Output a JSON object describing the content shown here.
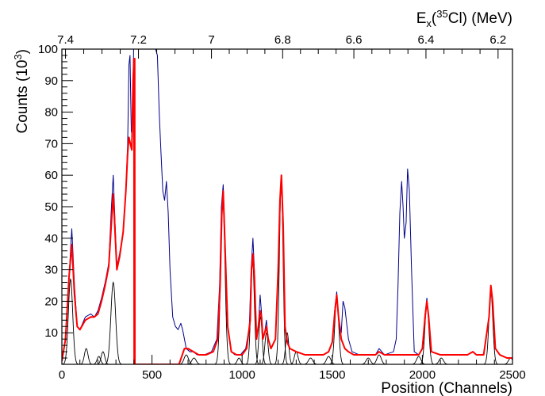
{
  "chart_data": {
    "type": "line",
    "xlabel": "Position (Channels)",
    "ylabel": "Counts (10^3)",
    "ylabel_parts": {
      "main": "Counts (10",
      "sup": "3",
      "end": ")"
    },
    "top_axis_label_parts": {
      "main": "E",
      "sub": "x",
      "open": "(",
      "sup": "35",
      "end": "Cl) (MeV)"
    },
    "xlim": [
      0,
      2500
    ],
    "ylim": [
      0,
      100
    ],
    "x_ticks": [
      {
        "v": 0,
        "label": "0"
      },
      {
        "v": 500,
        "label": "500"
      },
      {
        "v": 1000,
        "label": "1000"
      },
      {
        "v": 1500,
        "label": "1500"
      },
      {
        "v": 2000,
        "label": "2000"
      },
      {
        "v": 2500,
        "label": "2500"
      }
    ],
    "y_ticks": [
      {
        "v": 10,
        "label": "10"
      },
      {
        "v": 20,
        "label": "20"
      },
      {
        "v": 30,
        "label": "30"
      },
      {
        "v": 40,
        "label": "40"
      },
      {
        "v": 50,
        "label": "50"
      },
      {
        "v": 60,
        "label": "60"
      },
      {
        "v": 70,
        "label": "70"
      },
      {
        "v": 80,
        "label": "80"
      },
      {
        "v": 90,
        "label": "90"
      },
      {
        "v": 100,
        "label": "100"
      }
    ],
    "top_ticks": [
      {
        "channel": 20,
        "label": "7.4"
      },
      {
        "channel": 425,
        "label": "7.2"
      },
      {
        "channel": 830,
        "label": "7"
      },
      {
        "channel": 1225,
        "label": "6.8"
      },
      {
        "channel": 1620,
        "label": "6.6"
      },
      {
        "channel": 2020,
        "label": "6.4"
      },
      {
        "channel": 2420,
        "label": "6.2"
      }
    ],
    "series": [
      {
        "color": "#00008b",
        "values_y": [
          [
            0,
            1
          ],
          [
            20,
            8
          ],
          [
            40,
            28
          ],
          [
            55,
            43
          ],
          [
            70,
            25
          ],
          [
            85,
            12
          ],
          [
            100,
            11
          ],
          [
            130,
            15
          ],
          [
            160,
            16
          ],
          [
            180,
            15
          ],
          [
            200,
            17
          ],
          [
            220,
            21
          ],
          [
            240,
            26
          ],
          [
            260,
            32
          ],
          [
            275,
            50
          ],
          [
            285,
            60
          ],
          [
            295,
            45
          ],
          [
            305,
            31
          ],
          [
            320,
            35
          ],
          [
            340,
            42
          ],
          [
            355,
            55
          ],
          [
            365,
            70
          ],
          [
            372,
            95
          ],
          [
            378,
            98
          ],
          [
            385,
            74
          ],
          [
            392,
            72
          ],
          [
            398,
            100
          ],
          [
            405,
            100
          ],
          [
            415,
            100
          ],
          [
            430,
            100
          ],
          [
            440,
            100
          ],
          [
            450,
            100
          ],
          [
            460,
            100
          ],
          [
            470,
            100
          ],
          [
            480,
            100
          ],
          [
            490,
            100
          ],
          [
            500,
            100
          ],
          [
            510,
            100
          ],
          [
            520,
            100
          ],
          [
            530,
            98
          ],
          [
            540,
            80
          ],
          [
            550,
            67
          ],
          [
            560,
            55
          ],
          [
            570,
            52
          ],
          [
            580,
            58
          ],
          [
            590,
            48
          ],
          [
            600,
            30
          ],
          [
            615,
            15
          ],
          [
            630,
            12
          ],
          [
            645,
            11
          ],
          [
            660,
            13
          ],
          [
            670,
            11
          ],
          [
            690,
            5
          ],
          [
            710,
            4
          ],
          [
            730,
            4
          ],
          [
            750,
            3
          ],
          [
            790,
            3
          ],
          [
            830,
            4
          ],
          [
            860,
            8
          ],
          [
            875,
            25
          ],
          [
            885,
            50
          ],
          [
            895,
            57
          ],
          [
            905,
            40
          ],
          [
            920,
            12
          ],
          [
            940,
            4
          ],
          [
            960,
            3
          ],
          [
            990,
            3
          ],
          [
            1020,
            5
          ],
          [
            1040,
            12
          ],
          [
            1050,
            30
          ],
          [
            1060,
            40
          ],
          [
            1068,
            30
          ],
          [
            1080,
            8
          ],
          [
            1090,
            12
          ],
          [
            1100,
            22
          ],
          [
            1108,
            16
          ],
          [
            1115,
            8
          ],
          [
            1125,
            10
          ],
          [
            1135,
            14
          ],
          [
            1145,
            8
          ],
          [
            1160,
            5
          ],
          [
            1185,
            8
          ],
          [
            1200,
            30
          ],
          [
            1210,
            50
          ],
          [
            1218,
            60
          ],
          [
            1228,
            45
          ],
          [
            1238,
            12
          ],
          [
            1250,
            8
          ],
          [
            1265,
            5
          ],
          [
            1300,
            4
          ],
          [
            1350,
            3
          ],
          [
            1400,
            3
          ],
          [
            1450,
            3
          ],
          [
            1480,
            4
          ],
          [
            1500,
            7
          ],
          [
            1515,
            18
          ],
          [
            1525,
            23
          ],
          [
            1535,
            15
          ],
          [
            1550,
            10
          ],
          [
            1560,
            20
          ],
          [
            1570,
            18
          ],
          [
            1590,
            8
          ],
          [
            1610,
            4
          ],
          [
            1650,
            3
          ],
          [
            1700,
            3
          ],
          [
            1740,
            3
          ],
          [
            1760,
            5
          ],
          [
            1790,
            3
          ],
          [
            1840,
            4
          ],
          [
            1855,
            8
          ],
          [
            1865,
            25
          ],
          [
            1875,
            48
          ],
          [
            1885,
            58
          ],
          [
            1893,
            50
          ],
          [
            1900,
            40
          ],
          [
            1910,
            45
          ],
          [
            1918,
            62
          ],
          [
            1928,
            55
          ],
          [
            1940,
            30
          ],
          [
            1955,
            4
          ],
          [
            1980,
            3
          ],
          [
            2000,
            5
          ],
          [
            2015,
            16
          ],
          [
            2025,
            21
          ],
          [
            2035,
            15
          ],
          [
            2050,
            4
          ],
          [
            2100,
            3
          ],
          [
            2150,
            3
          ],
          [
            2200,
            3
          ],
          [
            2250,
            3
          ],
          [
            2280,
            4
          ],
          [
            2300,
            3
          ],
          [
            2340,
            3
          ],
          [
            2370,
            15
          ],
          [
            2380,
            24
          ],
          [
            2390,
            20
          ],
          [
            2405,
            5
          ],
          [
            2430,
            3
          ],
          [
            2470,
            2
          ],
          [
            2500,
            2
          ]
        ]
      },
      {
        "color": "#ff0000",
        "values_y": [
          [
            0,
            1
          ],
          [
            20,
            8
          ],
          [
            40,
            28
          ],
          [
            55,
            38
          ],
          [
            70,
            22
          ],
          [
            85,
            12
          ],
          [
            100,
            11
          ],
          [
            130,
            14
          ],
          [
            160,
            15
          ],
          [
            180,
            15
          ],
          [
            200,
            16
          ],
          [
            220,
            20
          ],
          [
            240,
            25
          ],
          [
            260,
            31
          ],
          [
            275,
            45
          ],
          [
            285,
            54
          ],
          [
            295,
            42
          ],
          [
            305,
            30
          ],
          [
            320,
            34
          ],
          [
            340,
            42
          ],
          [
            355,
            55
          ],
          [
            365,
            67
          ],
          [
            372,
            72
          ],
          [
            380,
            70
          ],
          [
            388,
            68
          ],
          [
            395,
            90
          ],
          [
            400,
            97
          ],
          [
            401,
            0
          ],
          [
            402,
            0
          ],
          [
            403,
            0
          ],
          [
            404,
            97
          ],
          [
            405,
            0
          ],
          [
            650,
            0
          ],
          [
            680,
            5
          ],
          [
            700,
            5
          ],
          [
            730,
            4
          ],
          [
            760,
            3
          ],
          [
            800,
            3
          ],
          [
            840,
            4
          ],
          [
            865,
            8
          ],
          [
            878,
            25
          ],
          [
            887,
            47
          ],
          [
            895,
            55
          ],
          [
            905,
            38
          ],
          [
            920,
            12
          ],
          [
            940,
            4
          ],
          [
            970,
            3
          ],
          [
            1000,
            3
          ],
          [
            1025,
            5
          ],
          [
            1045,
            14
          ],
          [
            1052,
            30
          ],
          [
            1060,
            35
          ],
          [
            1068,
            28
          ],
          [
            1080,
            8
          ],
          [
            1090,
            12
          ],
          [
            1100,
            17
          ],
          [
            1108,
            15
          ],
          [
            1115,
            8
          ],
          [
            1125,
            10
          ],
          [
            1135,
            12
          ],
          [
            1145,
            8
          ],
          [
            1160,
            5
          ],
          [
            1185,
            8
          ],
          [
            1200,
            30
          ],
          [
            1210,
            52
          ],
          [
            1218,
            60
          ],
          [
            1228,
            44
          ],
          [
            1238,
            12
          ],
          [
            1250,
            7
          ],
          [
            1265,
            5
          ],
          [
            1300,
            4
          ],
          [
            1350,
            3
          ],
          [
            1400,
            3
          ],
          [
            1450,
            3
          ],
          [
            1480,
            4
          ],
          [
            1500,
            7
          ],
          [
            1515,
            17
          ],
          [
            1525,
            22
          ],
          [
            1535,
            15
          ],
          [
            1550,
            8
          ],
          [
            1570,
            5
          ],
          [
            1590,
            4
          ],
          [
            1620,
            3
          ],
          [
            1650,
            3
          ],
          [
            1700,
            3
          ],
          [
            1740,
            3
          ],
          [
            1760,
            4
          ],
          [
            1790,
            3
          ],
          [
            1830,
            3
          ],
          [
            1900,
            3
          ],
          [
            1950,
            3
          ],
          [
            1980,
            3
          ],
          [
            2000,
            5
          ],
          [
            2015,
            15
          ],
          [
            2025,
            20
          ],
          [
            2035,
            15
          ],
          [
            2050,
            4
          ],
          [
            2100,
            3
          ],
          [
            2150,
            3
          ],
          [
            2200,
            3
          ],
          [
            2250,
            3
          ],
          [
            2280,
            4
          ],
          [
            2300,
            3
          ],
          [
            2340,
            3
          ],
          [
            2370,
            15
          ],
          [
            2380,
            25
          ],
          [
            2390,
            20
          ],
          [
            2405,
            5
          ],
          [
            2430,
            3
          ],
          [
            2470,
            2
          ],
          [
            2500,
            2
          ]
        ]
      }
    ],
    "components": {
      "color": "#000000",
      "peaks": [
        {
          "center": 48,
          "height": 27,
          "width": 12
        },
        {
          "center": 135,
          "height": 5,
          "width": 10
        },
        {
          "center": 205,
          "height": 2.5,
          "width": 10
        },
        {
          "center": 228,
          "height": 4,
          "width": 10
        },
        {
          "center": 285,
          "height": 26,
          "width": 13
        },
        {
          "center": 690,
          "height": 3,
          "width": 12
        },
        {
          "center": 733,
          "height": 2,
          "width": 12
        },
        {
          "center": 893,
          "height": 52,
          "width": 12
        },
        {
          "center": 983,
          "height": 2,
          "width": 10
        },
        {
          "center": 1058,
          "height": 33,
          "width": 10
        },
        {
          "center": 1102,
          "height": 15,
          "width": 9
        },
        {
          "center": 1135,
          "height": 10,
          "width": 9
        },
        {
          "center": 1217,
          "height": 58,
          "width": 10
        },
        {
          "center": 1250,
          "height": 10,
          "width": 9
        },
        {
          "center": 1300,
          "height": 4,
          "width": 10
        },
        {
          "center": 1380,
          "height": 2,
          "width": 12
        },
        {
          "center": 1480,
          "height": 2.5,
          "width": 12
        },
        {
          "center": 1525,
          "height": 21,
          "width": 11
        },
        {
          "center": 1700,
          "height": 2,
          "width": 12
        },
        {
          "center": 1760,
          "height": 3,
          "width": 12
        },
        {
          "center": 1980,
          "height": 2.5,
          "width": 12
        },
        {
          "center": 2025,
          "height": 19,
          "width": 11
        },
        {
          "center": 2105,
          "height": 2,
          "width": 12
        },
        {
          "center": 2380,
          "height": 23,
          "width": 11
        },
        {
          "center": 2490,
          "height": 2,
          "width": 12
        }
      ]
    }
  }
}
